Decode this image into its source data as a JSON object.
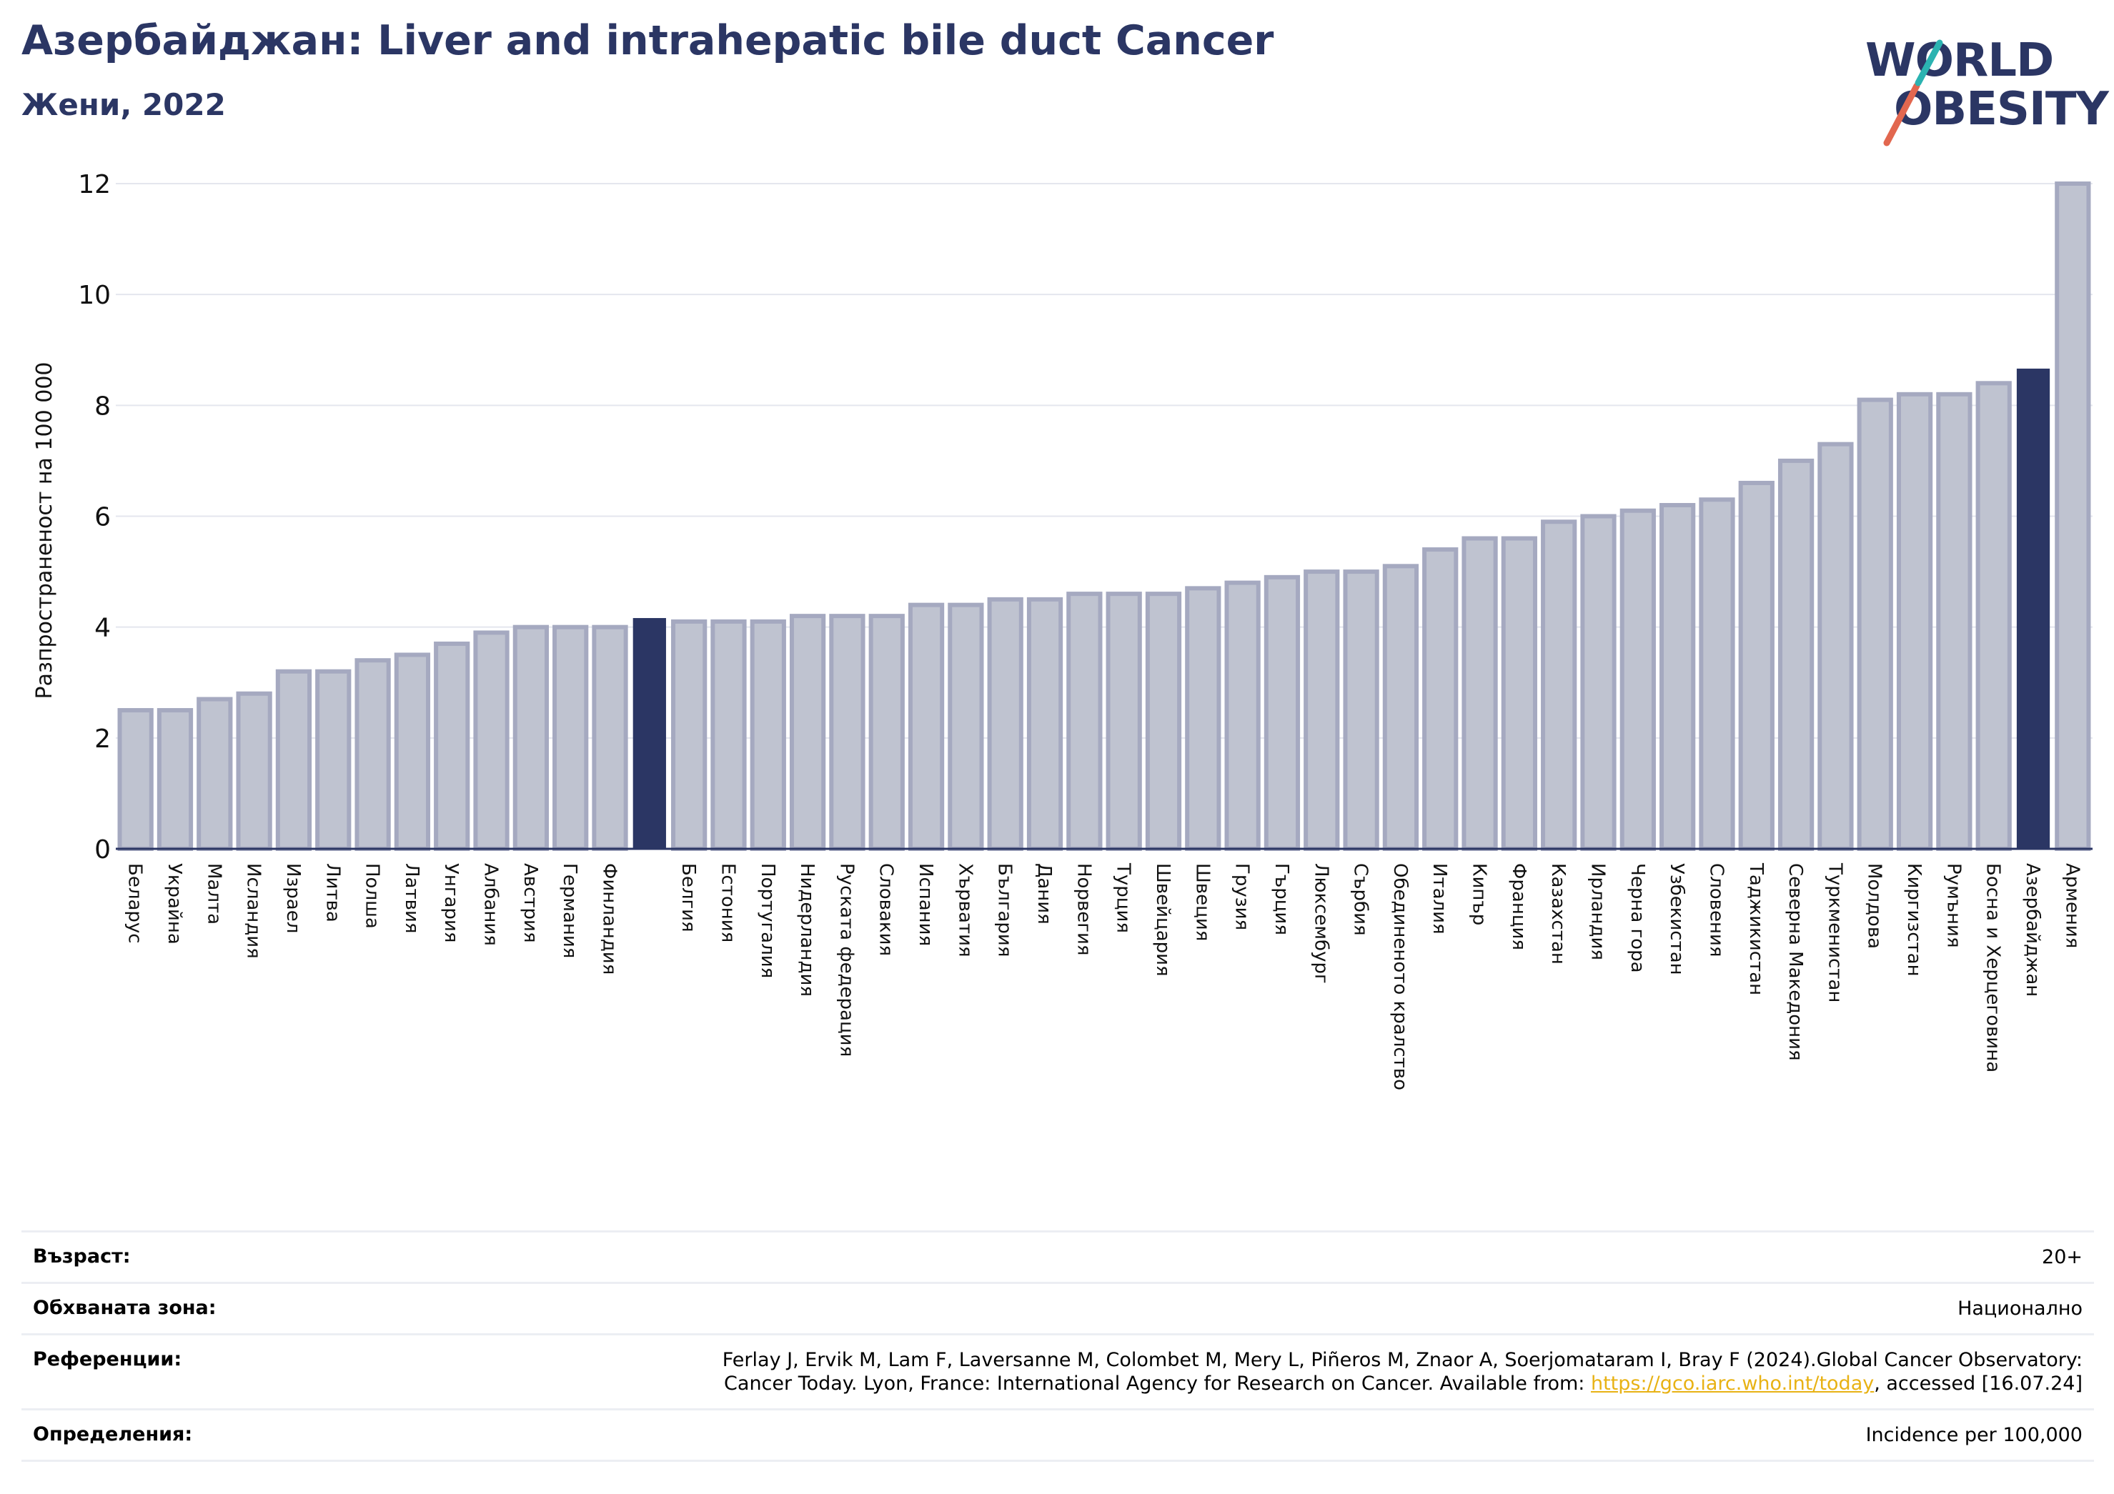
{
  "header": {
    "title": "Азербайджан: Liver and intrahepatic bile duct Cancer",
    "subtitle": "Жени, 2022"
  },
  "logo": {
    "line1": "WORLD",
    "line2": "OBESITY",
    "text_color": "#2b3664",
    "accent_teal": "#2bb3b1",
    "accent_orange": "#e2674f"
  },
  "chart_data": {
    "type": "bar",
    "ylabel": "Разпространеност  на 100 000",
    "ylim": [
      0,
      12
    ],
    "yticks": [
      0,
      2,
      4,
      6,
      8,
      10,
      12
    ],
    "grid": true,
    "colors": {
      "bar_fill": "#bfc3d0",
      "bar_stroke": "#a5a9c0",
      "highlight": "#2b3664"
    },
    "bars": [
      {
        "label": "Беларус",
        "value": 2.5,
        "highlight": false
      },
      {
        "label": "Украйна",
        "value": 2.5,
        "highlight": false
      },
      {
        "label": "Малта",
        "value": 2.7,
        "highlight": false
      },
      {
        "label": "Исландия",
        "value": 2.8,
        "highlight": false
      },
      {
        "label": "Израел",
        "value": 3.2,
        "highlight": false
      },
      {
        "label": "Литва",
        "value": 3.2,
        "highlight": false
      },
      {
        "label": "Полша",
        "value": 3.4,
        "highlight": false
      },
      {
        "label": "Латвия",
        "value": 3.5,
        "highlight": false
      },
      {
        "label": "Унгария",
        "value": 3.7,
        "highlight": false
      },
      {
        "label": "Албания",
        "value": 3.9,
        "highlight": false
      },
      {
        "label": "Австрия",
        "value": 4.0,
        "highlight": false
      },
      {
        "label": "Германия",
        "value": 4.0,
        "highlight": false
      },
      {
        "label": "Финландия",
        "value": 4.0,
        "highlight": false
      },
      {
        "label": "",
        "value": 4.15,
        "highlight": true
      },
      {
        "label": "Белгия",
        "value": 4.1,
        "highlight": false
      },
      {
        "label": "Естония",
        "value": 4.1,
        "highlight": false
      },
      {
        "label": "Португалия",
        "value": 4.1,
        "highlight": false
      },
      {
        "label": "Нидерландия",
        "value": 4.2,
        "highlight": false
      },
      {
        "label": "Руската федерация",
        "value": 4.2,
        "highlight": false
      },
      {
        "label": "Словакия",
        "value": 4.2,
        "highlight": false
      },
      {
        "label": "Испания",
        "value": 4.4,
        "highlight": false
      },
      {
        "label": "Хърватия",
        "value": 4.4,
        "highlight": false
      },
      {
        "label": "България",
        "value": 4.5,
        "highlight": false
      },
      {
        "label": "Дания",
        "value": 4.5,
        "highlight": false
      },
      {
        "label": "Норвегия",
        "value": 4.6,
        "highlight": false
      },
      {
        "label": "Турция",
        "value": 4.6,
        "highlight": false
      },
      {
        "label": "Швейцария",
        "value": 4.6,
        "highlight": false
      },
      {
        "label": "Швеция",
        "value": 4.7,
        "highlight": false
      },
      {
        "label": "Грузия",
        "value": 4.8,
        "highlight": false
      },
      {
        "label": "Гърция",
        "value": 4.9,
        "highlight": false
      },
      {
        "label": "Люксембург",
        "value": 5.0,
        "highlight": false
      },
      {
        "label": "Сърбия",
        "value": 5.0,
        "highlight": false
      },
      {
        "label": "Обединеното кралство",
        "value": 5.1,
        "highlight": false
      },
      {
        "label": "Италия",
        "value": 5.4,
        "highlight": false
      },
      {
        "label": "Кипър",
        "value": 5.6,
        "highlight": false
      },
      {
        "label": "Франция",
        "value": 5.6,
        "highlight": false
      },
      {
        "label": "Казахстан",
        "value": 5.9,
        "highlight": false
      },
      {
        "label": "Ирландия",
        "value": 6.0,
        "highlight": false
      },
      {
        "label": "Черна гора",
        "value": 6.1,
        "highlight": false
      },
      {
        "label": "Узбекистан",
        "value": 6.2,
        "highlight": false
      },
      {
        "label": "Словения",
        "value": 6.3,
        "highlight": false
      },
      {
        "label": "Таджикистан",
        "value": 6.6,
        "highlight": false
      },
      {
        "label": "Северна Македония",
        "value": 7.0,
        "highlight": false
      },
      {
        "label": "Туркменистан",
        "value": 7.3,
        "highlight": false
      },
      {
        "label": "Молдова",
        "value": 8.1,
        "highlight": false
      },
      {
        "label": "Киргизстан",
        "value": 8.2,
        "highlight": false
      },
      {
        "label": "Румъния",
        "value": 8.2,
        "highlight": false
      },
      {
        "label": "Босна и Херцеговина",
        "value": 8.4,
        "highlight": false
      },
      {
        "label": "Азербайджан",
        "value": 8.65,
        "highlight": true
      },
      {
        "label": "Армения",
        "value": 12.0,
        "highlight": false
      }
    ]
  },
  "info": {
    "age_label": "Възраст:",
    "age_value": "20+",
    "coverage_label": "Обхваната зона:",
    "coverage_value": "Национално",
    "references_label": "Референции:",
    "references_line1": "Ferlay J, Ervik M, Lam F, Laversanne M, Colombet M, Mery L, Piñeros M, Znaor A, Soerjomataram I, Bray F (2024).Global Cancer Observatory:",
    "references_line2_pre": "Cancer Today. Lyon, France: International Agency for Research on Cancer. Available from: ",
    "references_link": "https://gco.iarc.who.int/today",
    "references_line2_post": ", accessed [16.07.24]",
    "definitions_label": "Определения:",
    "definitions_value": "Incidence per 100,000"
  }
}
